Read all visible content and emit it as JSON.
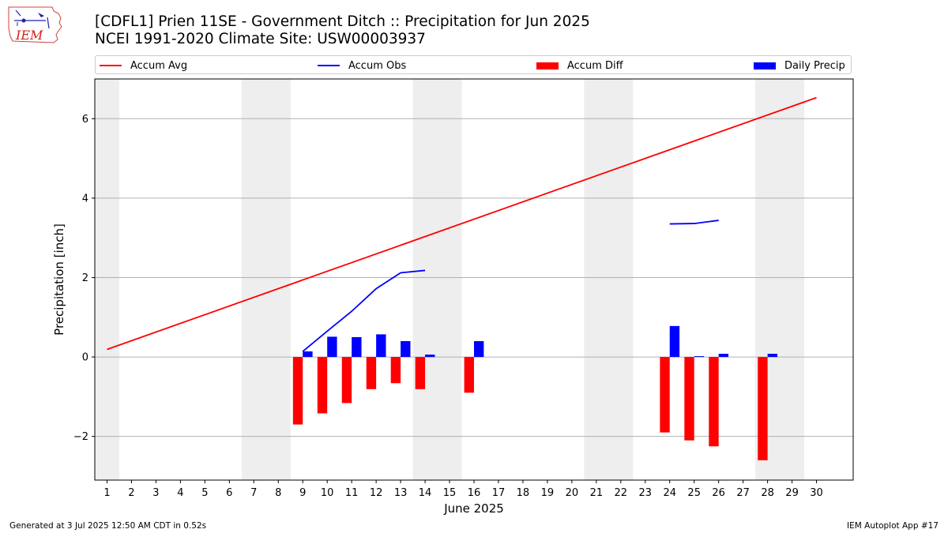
{
  "header": {
    "title_line1": "[CDFL1] Prien 11SE - Government Ditch :: Precipitation for Jun 2025",
    "title_line2": "NCEI 1991-2020 Climate Site: USW00003937"
  },
  "logo": {
    "text": "IEM",
    "icon": "iem-iowa-logo-icon"
  },
  "legend": {
    "accum_avg": "Accum Avg",
    "accum_obs": "Accum Obs",
    "accum_diff": "Accum Diff",
    "daily_precip": "Daily Precip"
  },
  "footer": {
    "left": "Generated at 3 Jul 2025 12:50 AM CDT in 0.52s",
    "right": "IEM Autoplot App #17"
  },
  "chart_data": {
    "type": "bar",
    "title": "[CDFL1] Prien 11SE - Government Ditch :: Precipitation for Jun 2025",
    "subtitle": "NCEI 1991-2020 Climate Site: USW00003937",
    "xlabel": "June 2025",
    "ylabel": "Precipitation [inch]",
    "xlim": [
      0.5,
      31.5
    ],
    "ylim": [
      -3.1,
      7.0
    ],
    "x_ticks": [
      1,
      2,
      3,
      4,
      5,
      6,
      7,
      8,
      9,
      10,
      11,
      12,
      13,
      14,
      15,
      16,
      17,
      18,
      19,
      20,
      21,
      22,
      23,
      24,
      25,
      26,
      27,
      28,
      29,
      30
    ],
    "y_ticks": [
      -2,
      0,
      2,
      4,
      6
    ],
    "y_tick_labels": [
      "−2",
      "0",
      "2",
      "4",
      "6"
    ],
    "grid": "horizontal",
    "legend_position": "top",
    "weekend_shading": [
      [
        0.5,
        1.5
      ],
      [
        6.5,
        8.5
      ],
      [
        13.5,
        15.5
      ],
      [
        20.5,
        22.5
      ],
      [
        27.5,
        29.5
      ]
    ],
    "colors": {
      "accum_avg": "#ff0000",
      "accum_obs": "#0000ff",
      "accum_diff": "#ff0000",
      "daily_precip": "#0000ff",
      "shading": "#eeeeee",
      "grid": "#b0b0b0"
    },
    "accum_avg": {
      "days": [
        1,
        30
      ],
      "values": [
        0.19,
        6.53
      ]
    },
    "accum_obs": [
      {
        "days": [
          9,
          10,
          11,
          12,
          13,
          14
        ],
        "values": [
          0.14,
          0.65,
          1.15,
          1.72,
          2.12,
          2.18
        ]
      },
      {
        "days": [
          24,
          25,
          26
        ],
        "values": [
          3.35,
          3.36,
          3.44
        ]
      }
    ],
    "daily_precip": {
      "days": [
        9,
        10,
        11,
        12,
        13,
        14,
        16,
        24,
        25,
        26,
        28
      ],
      "values": [
        0.14,
        0.51,
        0.5,
        0.57,
        0.4,
        0.06,
        0.4,
        0.78,
        0.02,
        0.08,
        0.08
      ]
    },
    "accum_diff": {
      "days": [
        9,
        10,
        11,
        12,
        13,
        14,
        16,
        24,
        25,
        26,
        28
      ],
      "values": [
        -1.7,
        -1.42,
        -1.16,
        -0.81,
        -0.66,
        -0.81,
        -0.9,
        -1.9,
        -2.1,
        -2.25,
        -2.6
      ]
    }
  }
}
